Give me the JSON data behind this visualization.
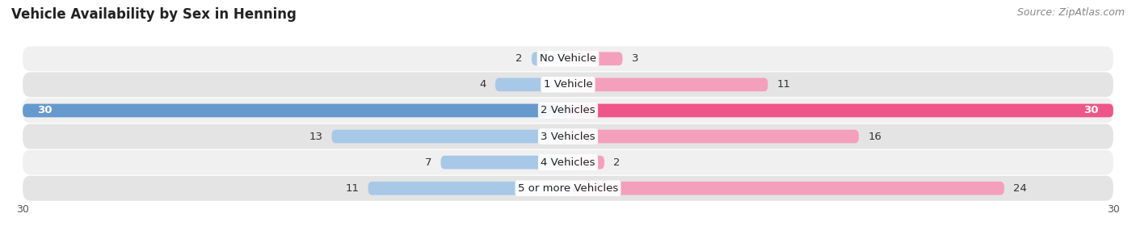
{
  "title": "Vehicle Availability by Sex in Henning",
  "source": "Source: ZipAtlas.com",
  "categories": [
    "No Vehicle",
    "1 Vehicle",
    "2 Vehicles",
    "3 Vehicles",
    "4 Vehicles",
    "5 or more Vehicles"
  ],
  "male_values": [
    2,
    4,
    30,
    13,
    7,
    11
  ],
  "female_values": [
    3,
    11,
    30,
    16,
    2,
    24
  ],
  "male_color_small": "#a8c8e8",
  "male_color_large": "#6699cc",
  "female_color_small": "#f4a0bc",
  "female_color_large": "#ee5588",
  "row_bg_even": "#f0f0f0",
  "row_bg_odd": "#e4e4e4",
  "xlim": 30,
  "bar_height": 0.52,
  "title_fontsize": 12,
  "source_fontsize": 9,
  "label_fontsize": 9.5,
  "axis_label_fontsize": 9,
  "legend_fontsize": 9.5,
  "background_color": "#ffffff"
}
